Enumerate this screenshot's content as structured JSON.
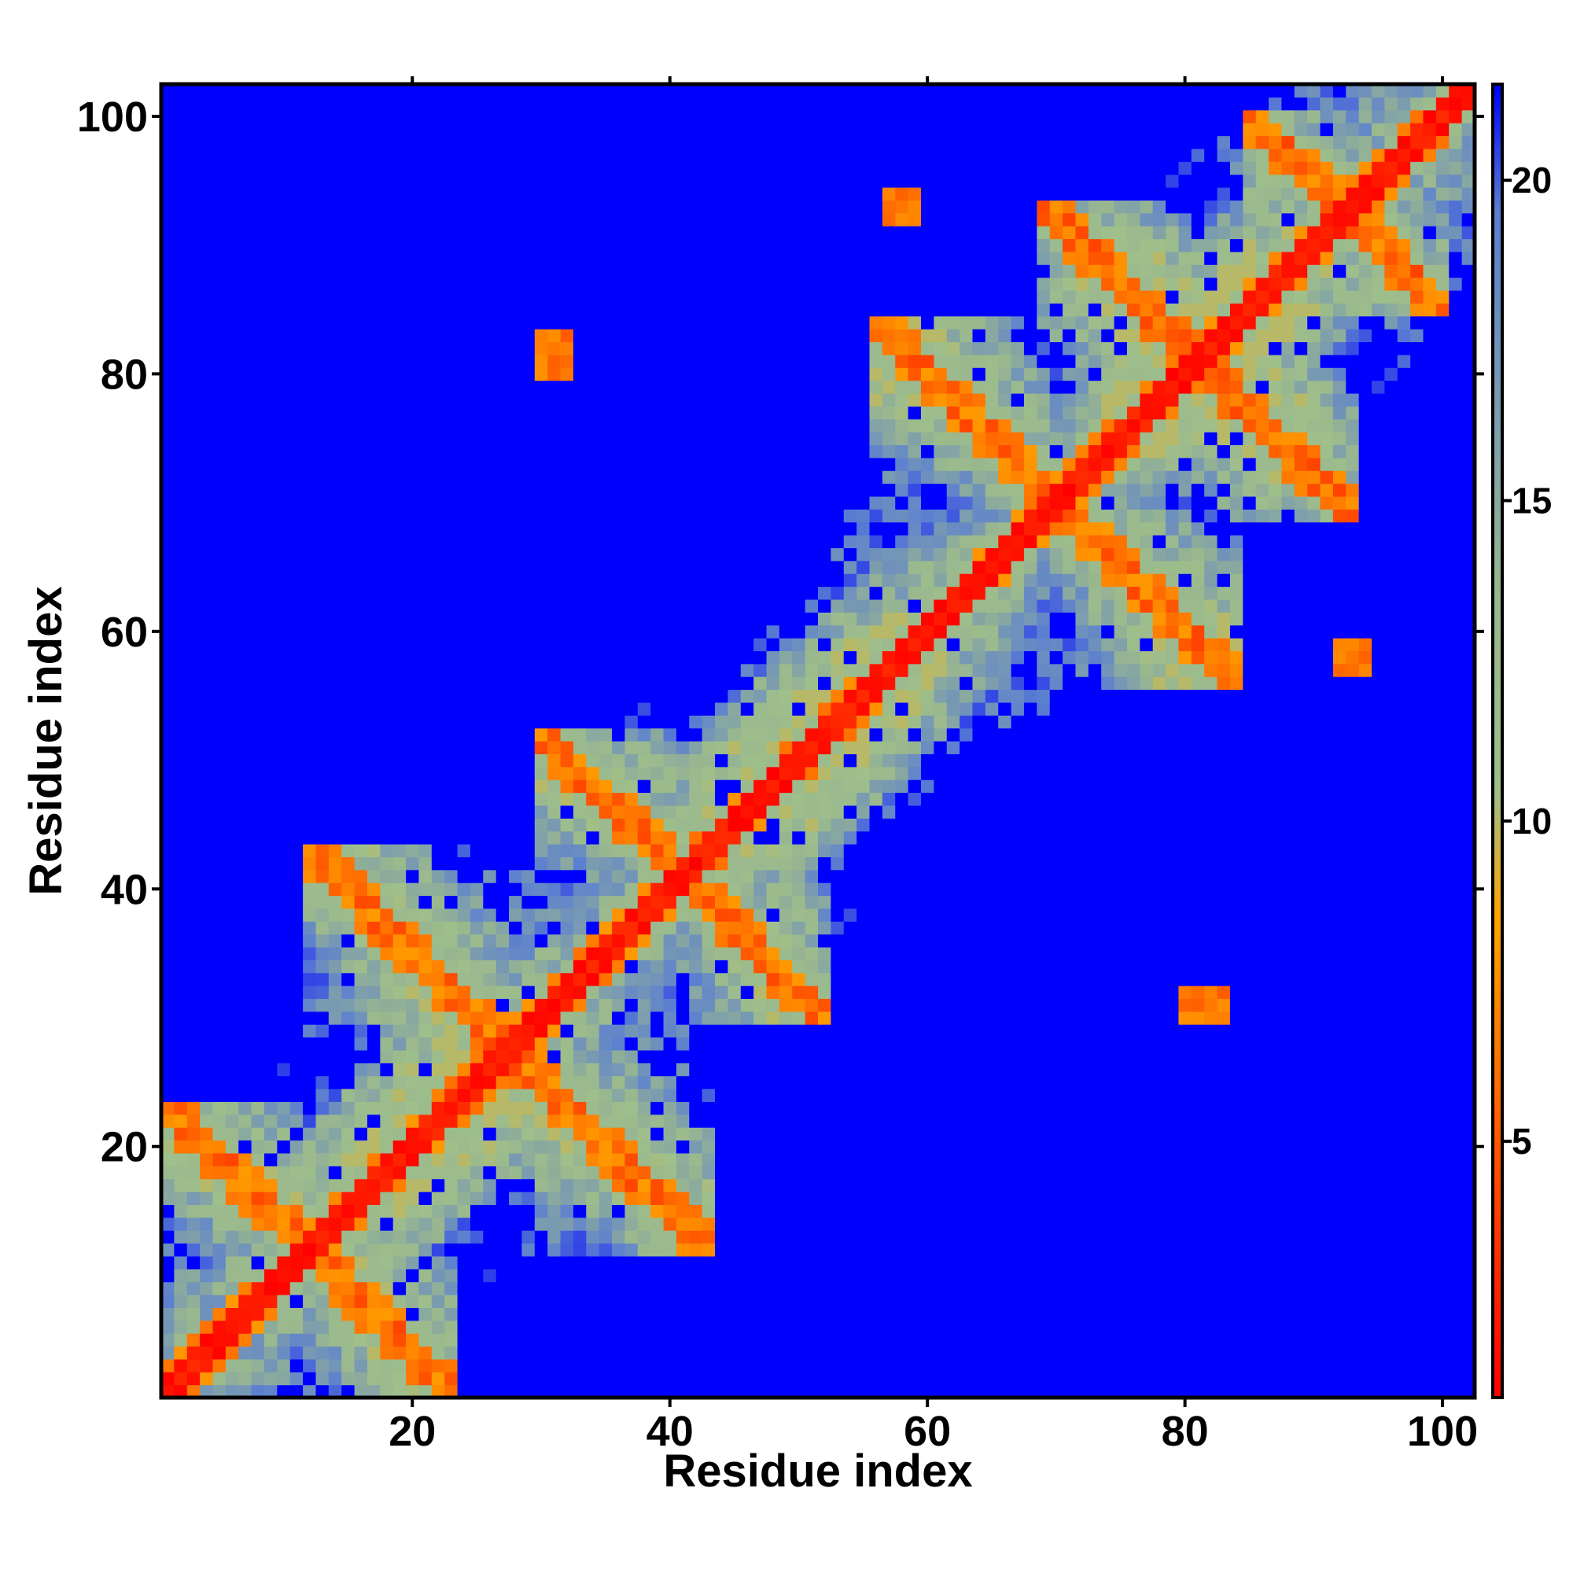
{
  "chart_data": {
    "type": "heatmap",
    "title": "",
    "xlabel": "Residue index",
    "ylabel": "Residue index",
    "n": 102,
    "xlim": [
      1,
      102
    ],
    "ylim": [
      1,
      102
    ],
    "x_ticks": [
      20,
      40,
      60,
      80,
      100
    ],
    "y_ticks": [
      20,
      40,
      60,
      80,
      100
    ],
    "colorbar": {
      "ticks": [
        5,
        10,
        15,
        20
      ],
      "range": [
        1,
        21.5
      ],
      "stops": [
        {
          "value": 1,
          "color": "#ff0000"
        },
        {
          "value": 8.5,
          "color": "#ffa500"
        },
        {
          "value": 10.5,
          "color": "#9fbf8b"
        },
        {
          "value": 13.5,
          "color": "#9ab88e"
        },
        {
          "value": 19.5,
          "color": "#5b7fd1"
        },
        {
          "value": 21.5,
          "color": "#0000ff"
        }
      ]
    },
    "colors": {
      "contact_close": "#ff0000",
      "contact_mid": "#ffa500",
      "intermediate": "#9fbf8b",
      "far": "#0000ff"
    },
    "contact_bands": [
      {
        "kind": "diagonal",
        "from": 1,
        "to": 102
      },
      {
        "kind": "antiparallel",
        "sum": 24,
        "from": 2,
        "to": 22
      },
      {
        "kind": "antiparallel",
        "sum": 55,
        "from": 13,
        "to": 42
      },
      {
        "kind": "antiparallel",
        "sum": 82,
        "from": 31,
        "to": 51
      },
      {
        "kind": "antiparallel",
        "sum": 140,
        "from": 57,
        "to": 83
      },
      {
        "kind": "antiparallel",
        "sum": 162,
        "from": 70,
        "to": 92
      },
      {
        "kind": "antiparallel",
        "sum": 185,
        "from": 86,
        "to": 99
      }
    ],
    "blocks": [
      [
        8,
        7,
        3,
        3
      ],
      [
        57,
        92,
        3,
        3
      ],
      [
        92,
        57,
        3,
        3
      ],
      [
        80,
        30,
        4,
        3
      ],
      [
        30,
        80,
        3,
        4
      ]
    ]
  }
}
